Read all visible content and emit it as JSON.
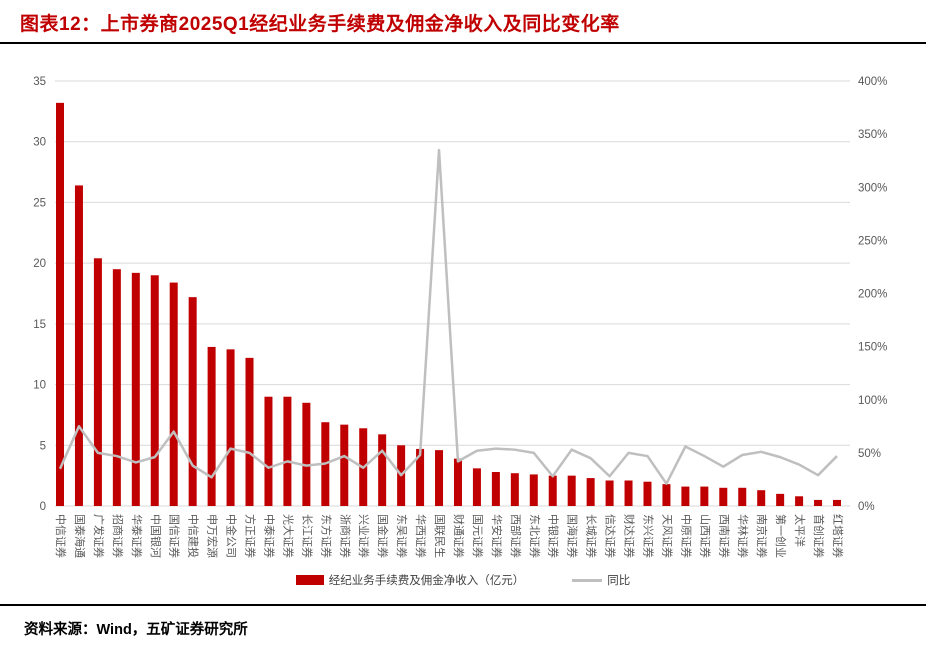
{
  "header": {
    "title": "图表12：上市券商2025Q1经纪业务手续费及佣金净收入及同比变化率"
  },
  "chart_data": {
    "type": "bar",
    "title": "上市券商2025Q1经纪业务手续费及佣金净收入及同比变化率",
    "categories": [
      "中信证券",
      "国泰海通",
      "广发证券",
      "招商证券",
      "华泰证券",
      "中国银河",
      "国信证券",
      "中信建投",
      "申万宏源",
      "中金公司",
      "方正证券",
      "中泰证券",
      "光大证券",
      "长江证券",
      "东方证券",
      "浙商证券",
      "兴业证券",
      "国金证券",
      "东吴证券",
      "华西证券",
      "国联民生",
      "财通证券",
      "国元证券",
      "华安证券",
      "西部证券",
      "东北证券",
      "中银证券",
      "国海证券",
      "长城证券",
      "信达证券",
      "财达证券",
      "东兴证券",
      "天风证券",
      "中原证券",
      "山西证券",
      "西南证券",
      "华林证券",
      "南京证券",
      "第一创业",
      "太平洋",
      "首创证券",
      "红塔证券"
    ],
    "series": [
      {
        "name": "经纪业务手续费及佣金净收入（亿元）",
        "type": "bar",
        "axis": "left",
        "color": "#c00000",
        "values": [
          33.2,
          26.4,
          20.4,
          19.5,
          19.2,
          19.0,
          18.4,
          17.2,
          13.1,
          12.9,
          12.2,
          9.0,
          9.0,
          8.5,
          6.9,
          6.7,
          6.4,
          5.9,
          5.0,
          4.7,
          4.6,
          3.9,
          3.1,
          2.8,
          2.7,
          2.6,
          2.5,
          2.5,
          2.3,
          2.1,
          2.1,
          2.0,
          1.8,
          1.6,
          1.6,
          1.5,
          1.5,
          1.3,
          1.0,
          0.8,
          0.5,
          0.5
        ]
      },
      {
        "name": "同比",
        "type": "line",
        "axis": "right",
        "color": "#bfbfbf",
        "values_pct": [
          35,
          75,
          50,
          47,
          41,
          46,
          70,
          38,
          27,
          54,
          50,
          36,
          42,
          38,
          40,
          47,
          36,
          52,
          29,
          48,
          335,
          42,
          52,
          54,
          53,
          50,
          28,
          53,
          45,
          28,
          50,
          47,
          21,
          56,
          47,
          37,
          48,
          51,
          46,
          39,
          29,
          47
        ]
      }
    ],
    "left_axis": {
      "min": 0,
      "max": 35,
      "step": 5,
      "ticks": [
        "0",
        "5",
        "10",
        "15",
        "20",
        "25",
        "30",
        "35"
      ]
    },
    "right_axis": {
      "min_pct": 0,
      "max_pct": 400,
      "step_pct": 50,
      "ticks": [
        "0%",
        "50%",
        "100%",
        "150%",
        "200%",
        "250%",
        "300%",
        "350%",
        "400%"
      ]
    },
    "grid": "horizontal",
    "legend_position": "bottom",
    "colors": {
      "gridline": "#d9d9d9",
      "axis_text": "#595959",
      "bar": "#c00000",
      "line": "#bfbfbf"
    }
  },
  "legend": {
    "bar_label": "经纪业务手续费及佣金净收入（亿元）",
    "line_label": "同比"
  },
  "footer": {
    "source": "资料来源：Wind，五矿证券研究所"
  }
}
